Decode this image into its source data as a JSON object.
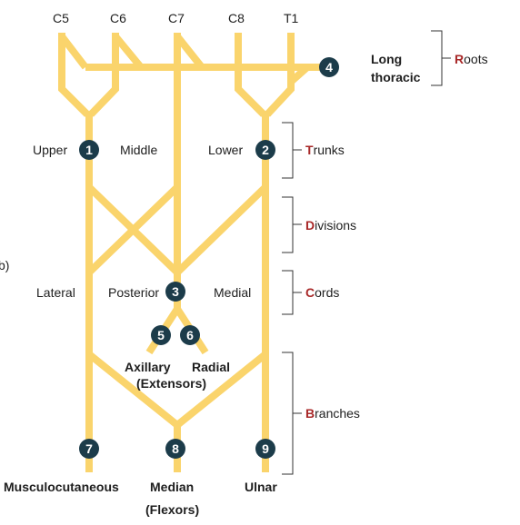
{
  "colors": {
    "nerve": "#fad46c",
    "badge": "#1c3c4a",
    "category_initial": "#a82828",
    "text": "#1e1e1e"
  },
  "roots": {
    "c5": "C5",
    "c6": "C6",
    "c7": "C7",
    "c8": "C8",
    "t1": "T1"
  },
  "long_thoracic": {
    "line1": "Long",
    "line2": "thoracic"
  },
  "trunks": {
    "upper": "Upper",
    "middle": "Middle",
    "lower": "Lower"
  },
  "cords": {
    "lateral": "Lateral",
    "posterior": "Posterior",
    "medial": "Medial"
  },
  "posterior_branches": {
    "axillary": "Axillary",
    "radial": "Radial",
    "extensors": "(Extensors)"
  },
  "terminal_branches": {
    "musculocutaneous": "Musculocutaneous",
    "median": "Median",
    "flexors": "(Flexors)",
    "ulnar": "Ulnar"
  },
  "badges": {
    "b1": "1",
    "b2": "2",
    "b3": "3",
    "b4": "4",
    "b5": "5",
    "b6": "6",
    "b7": "7",
    "b8": "8",
    "b9": "9"
  },
  "categories": {
    "roots": {
      "initial": "R",
      "rest": "oots"
    },
    "trunks": {
      "initial": "T",
      "rest": "runks"
    },
    "divisions": {
      "initial": "D",
      "rest": "ivisions"
    },
    "cords": {
      "initial": "C",
      "rest": "ords"
    },
    "branches": {
      "initial": "B",
      "rest": "ranches"
    }
  },
  "edge_fragment": "b)"
}
